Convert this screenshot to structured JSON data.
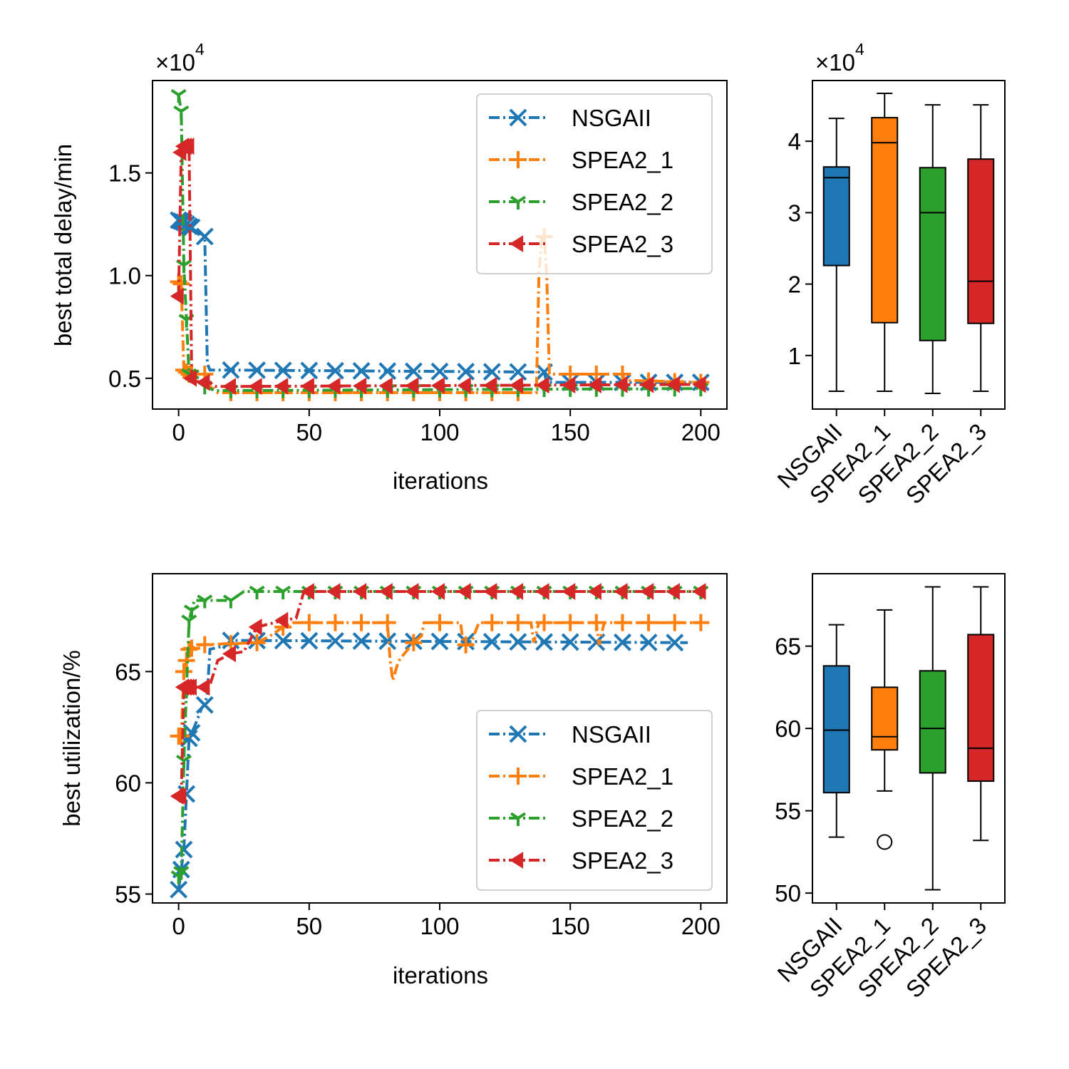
{
  "chart_data": [
    {
      "id": "delay-line",
      "type": "line",
      "xlabel": "iterations",
      "ylabel": "best total delay/min",
      "offset_label": "×10",
      "offset_exp": "4",
      "xlim": [
        -10,
        210
      ],
      "ylim": [
        3500,
        19500
      ],
      "xticks": [
        0,
        50,
        100,
        150,
        200
      ],
      "yticks": [
        5000,
        10000,
        15000
      ],
      "ytick_labels": [
        "0.5",
        "1.0",
        "1.5"
      ],
      "legend_position": "upper right",
      "series": [
        {
          "name": "NSGAII",
          "color": "#1f77b4",
          "marker": "x",
          "points": [
            [
              0,
              12700
            ],
            [
              2,
              12600
            ],
            [
              4,
              12400
            ],
            [
              6,
              12300
            ],
            [
              9,
              12000
            ],
            [
              10,
              11900
            ],
            [
              11,
              5700
            ],
            [
              12,
              5400
            ],
            [
              20,
              5400
            ],
            [
              200,
              5300
            ]
          ],
          "stepchange": [
            [
              140,
              5300
            ],
            [
              141,
              4800
            ],
            [
              200,
              4800
            ]
          ]
        },
        {
          "name": "SPEA2_1",
          "color": "#ff7f0e",
          "marker": "+",
          "points": [
            [
              0,
              9700
            ],
            [
              1,
              9600
            ],
            [
              2,
              5400
            ],
            [
              4,
              5200
            ],
            [
              10,
              5200
            ],
            [
              12,
              4600
            ],
            [
              15,
              4300
            ],
            [
              137,
              4300
            ],
            [
              138,
              10000
            ],
            [
              139,
              11800
            ],
            [
              140,
              11900
            ],
            [
              141,
              10000
            ],
            [
              142,
              5200
            ],
            [
              170,
              5200
            ],
            [
              171,
              4900
            ],
            [
              200,
              4800
            ]
          ]
        },
        {
          "name": "SPEA2_2",
          "color": "#2ca02c",
          "marker": "tri_down",
          "points": [
            [
              0,
              18800
            ],
            [
              1,
              18000
            ],
            [
              2,
              10500
            ],
            [
              4,
              5200
            ],
            [
              8,
              5000
            ],
            [
              10,
              4600
            ],
            [
              14,
              4400
            ],
            [
              200,
              4500
            ]
          ]
        },
        {
          "name": "SPEA2_3",
          "color": "#d62728",
          "marker": "tri_left",
          "points": [
            [
              0,
              9000
            ],
            [
              1,
              16000
            ],
            [
              2,
              16300
            ],
            [
              4,
              16300
            ],
            [
              5,
              5000
            ],
            [
              8,
              4800
            ],
            [
              12,
              4800
            ],
            [
              14,
              4600
            ],
            [
              20,
              4600
            ],
            [
              200,
              4700
            ]
          ]
        }
      ]
    },
    {
      "id": "delay-box",
      "type": "box",
      "offset_label": "×10",
      "offset_exp": "4",
      "ylim": [
        2500,
        48500
      ],
      "yticks": [
        10000,
        20000,
        30000,
        40000
      ],
      "ytick_labels": [
        "1",
        "2",
        "3",
        "4"
      ],
      "categories": [
        "NSGAII",
        "SPEA2_1",
        "SPEA2_2",
        "SPEA2_3"
      ],
      "boxes": [
        {
          "name": "NSGAII",
          "color": "#1f77b4",
          "whislo": 5000,
          "q1": 22600,
          "med": 34900,
          "q3": 36400,
          "whishi": 43200,
          "fliers": []
        },
        {
          "name": "SPEA2_1",
          "color": "#ff7f0e",
          "whislo": 5000,
          "q1": 14600,
          "med": 39800,
          "q3": 43300,
          "whishi": 46700,
          "fliers": []
        },
        {
          "name": "SPEA2_2",
          "color": "#2ca02c",
          "whislo": 4700,
          "q1": 12100,
          "med": 30000,
          "q3": 36300,
          "whishi": 45100,
          "fliers": []
        },
        {
          "name": "SPEA2_3",
          "color": "#d62728",
          "whislo": 5000,
          "q1": 14500,
          "med": 20400,
          "q3": 37500,
          "whishi": 45100,
          "fliers": []
        }
      ]
    },
    {
      "id": "util-line",
      "type": "line",
      "xlabel": "iterations",
      "ylabel": "best utilization/%",
      "xlim": [
        -10,
        210
      ],
      "ylim": [
        54.6,
        69.4
      ],
      "xticks": [
        0,
        50,
        100,
        150,
        200
      ],
      "yticks": [
        55,
        60,
        65
      ],
      "ytick_labels": [
        "55",
        "60",
        "65"
      ],
      "legend_position": "lower right",
      "series": [
        {
          "name": "NSGAII",
          "color": "#1f77b4",
          "marker": "x",
          "points": [
            [
              0,
              55.2
            ],
            [
              2,
              57
            ],
            [
              4,
              62
            ],
            [
              6,
              62.5
            ],
            [
              9,
              63.4
            ],
            [
              10,
              63.5
            ],
            [
              11,
              64
            ],
            [
              12,
              66
            ],
            [
              19,
              66.2
            ],
            [
              20,
              66.4
            ],
            [
              195,
              66.3
            ]
          ]
        },
        {
          "name": "SPEA2_1",
          "color": "#ff7f0e",
          "marker": "+",
          "points": [
            [
              0,
              62.1
            ],
            [
              1,
              62.1
            ],
            [
              2,
              65
            ],
            [
              4,
              66
            ],
            [
              8,
              66.2
            ],
            [
              30,
              66.3
            ],
            [
              35,
              66.6
            ],
            [
              40,
              67
            ],
            [
              44,
              67.2
            ],
            [
              80,
              67.2
            ],
            [
              81,
              65.5
            ],
            [
              82,
              64.6
            ],
            [
              84,
              65.4
            ],
            [
              85,
              65.6
            ],
            [
              90,
              66.3
            ],
            [
              93,
              66.6
            ],
            [
              94,
              67.2
            ],
            [
              108,
              67.2
            ],
            [
              109,
              66.2
            ],
            [
              112,
              66.2
            ],
            [
              113,
              66.6
            ],
            [
              115,
              67.2
            ],
            [
              135,
              67.2
            ],
            [
              136,
              66.3
            ],
            [
              138,
              67.2
            ],
            [
              160,
              67.2
            ],
            [
              161,
              66.2
            ],
            [
              163,
              67.2
            ],
            [
              200,
              67.2
            ]
          ]
        },
        {
          "name": "SPEA2_2",
          "color": "#2ca02c",
          "marker": "tri_down",
          "points": [
            [
              0,
              55.8
            ],
            [
              1,
              56
            ],
            [
              2,
              61
            ],
            [
              4,
              67.3
            ],
            [
              6,
              68.2
            ],
            [
              20,
              68.2
            ],
            [
              25,
              68.6
            ],
            [
              200,
              68.6
            ]
          ]
        },
        {
          "name": "SPEA2_3",
          "color": "#d62728",
          "marker": "tri_left",
          "points": [
            [
              0,
              59.4
            ],
            [
              1,
              59.4
            ],
            [
              2,
              64.3
            ],
            [
              10,
              64.3
            ],
            [
              12,
              64.4
            ],
            [
              15,
              65.5
            ],
            [
              20,
              65.8
            ],
            [
              25,
              65.9
            ],
            [
              30,
              67
            ],
            [
              40,
              67.3
            ],
            [
              45,
              67.4
            ],
            [
              48,
              68.6
            ],
            [
              200,
              68.6
            ]
          ]
        }
      ]
    },
    {
      "id": "util-box",
      "type": "box",
      "ylim": [
        49.4,
        69.4
      ],
      "yticks": [
        50,
        55,
        60,
        65
      ],
      "ytick_labels": [
        "50",
        "55",
        "60",
        "65"
      ],
      "categories": [
        "NSGAII",
        "SPEA2_1",
        "SPEA2_2",
        "SPEA2_3"
      ],
      "boxes": [
        {
          "name": "NSGAII",
          "color": "#1f77b4",
          "whislo": 53.4,
          "q1": 56.1,
          "med": 59.9,
          "q3": 63.8,
          "whishi": 66.3,
          "fliers": []
        },
        {
          "name": "SPEA2_1",
          "color": "#ff7f0e",
          "whislo": 56.2,
          "q1": 58.7,
          "med": 59.5,
          "q3": 62.5,
          "whishi": 67.2,
          "fliers": [
            53.1
          ]
        },
        {
          "name": "SPEA2_2",
          "color": "#2ca02c",
          "whislo": 50.2,
          "q1": 57.3,
          "med": 60.0,
          "q3": 63.5,
          "whishi": 68.6,
          "fliers": []
        },
        {
          "name": "SPEA2_3",
          "color": "#d62728",
          "whislo": 53.2,
          "q1": 56.8,
          "med": 58.8,
          "q3": 65.7,
          "whishi": 68.6,
          "fliers": []
        }
      ]
    }
  ]
}
